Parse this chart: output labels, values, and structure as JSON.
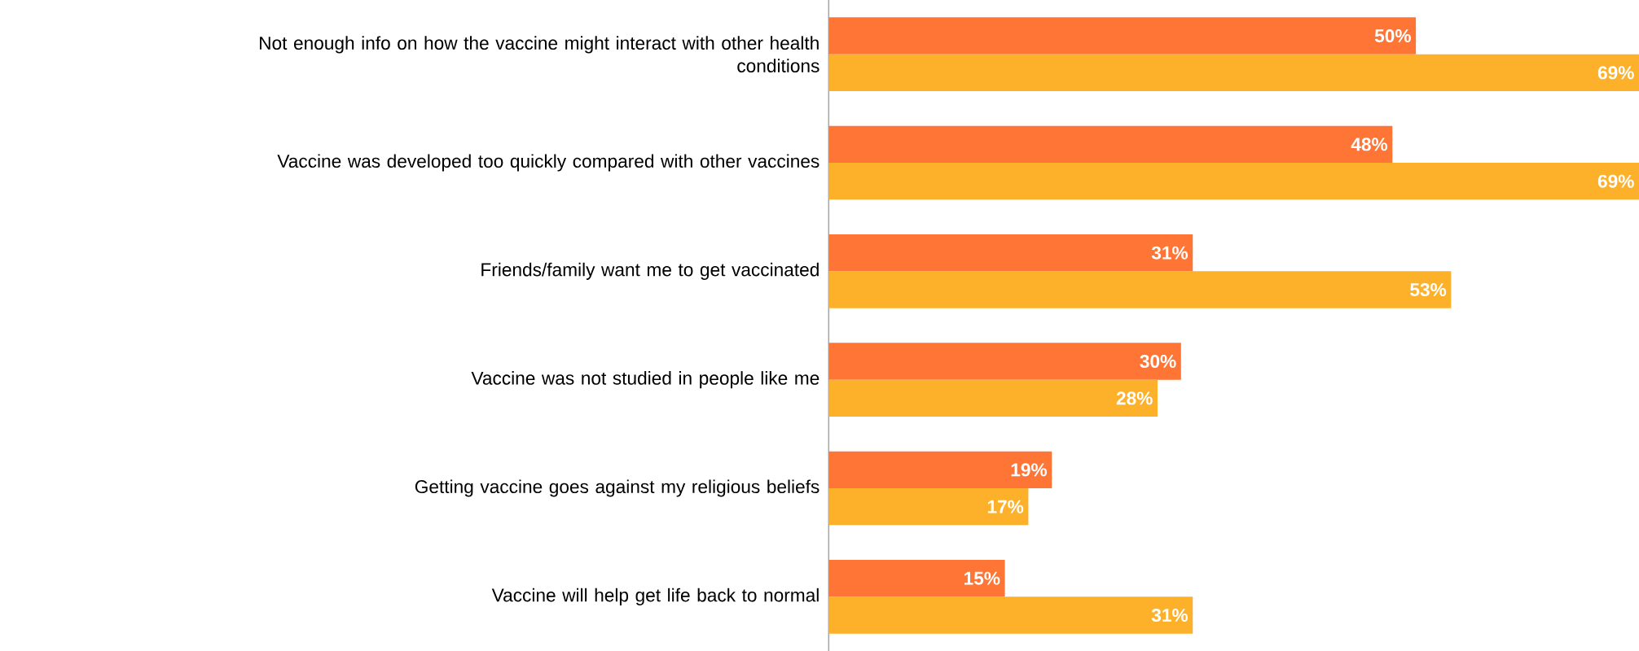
{
  "chart_data": {
    "type": "bar",
    "orientation": "horizontal",
    "categories": [
      "Not enough info on how the vaccine might interact with other health conditions",
      "Vaccine was developed too quickly compared with other vaccines",
      "Friends/family want me to get vaccinated",
      "Vaccine was not studied in people like me",
      "Getting vaccine goes against my religious beliefs",
      "Vaccine will help get life back to normal"
    ],
    "series": [
      {
        "color": "#fe7535",
        "values": [
          50,
          48,
          31,
          30,
          19,
          15
        ],
        "value_labels": [
          "50%",
          "48%",
          "31%",
          "30%",
          "19%",
          "15%"
        ]
      },
      {
        "color": "#fdb12a",
        "values": [
          69,
          69,
          53,
          28,
          17,
          31
        ],
        "value_labels": [
          "69%",
          "69%",
          "53%",
          "28%",
          "17%",
          "31%"
        ]
      }
    ]
  }
}
